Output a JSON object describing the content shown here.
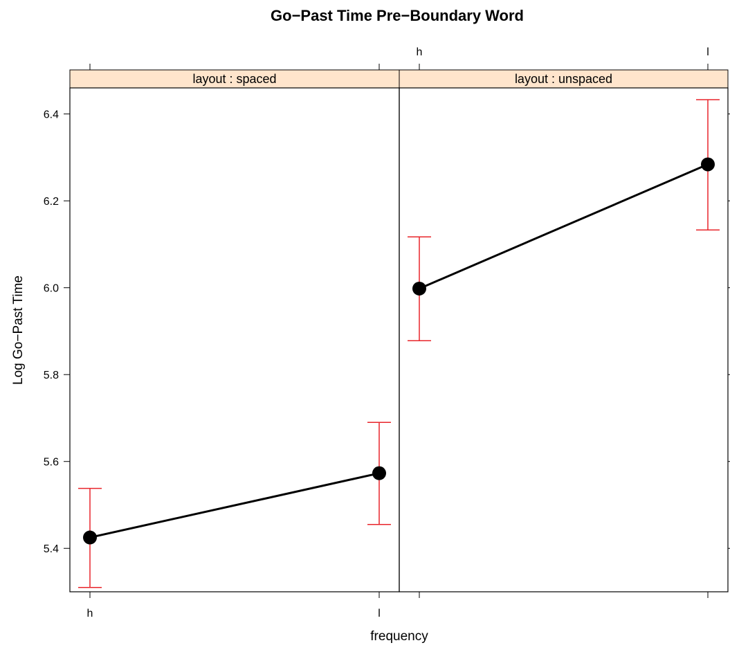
{
  "chart_data": {
    "type": "line",
    "title": "Go−Past Time Pre−Boundary Word",
    "xlabel": "frequency",
    "ylabel": "Log Go−Past Time",
    "categories": [
      "h",
      "l"
    ],
    "ylim": [
      5.3,
      6.46
    ],
    "yticks": [
      "5.4",
      "5.6",
      "5.8",
      "6.0",
      "6.2",
      "6.4"
    ],
    "grid": false,
    "panels": [
      {
        "name": "layout : spaced",
        "values": [
          5.425,
          5.573
        ],
        "lower": [
          5.31,
          5.455
        ],
        "upper": [
          5.538,
          5.69
        ]
      },
      {
        "name": "layout : unspaced",
        "values": [
          5.998,
          6.284
        ],
        "lower": [
          5.878,
          6.133
        ],
        "upper": [
          6.117,
          6.433
        ]
      }
    ],
    "colors": {
      "line": "#000000",
      "errorbar": "#e8242a",
      "strip": "#ffe5cc",
      "point": "#000000"
    }
  }
}
